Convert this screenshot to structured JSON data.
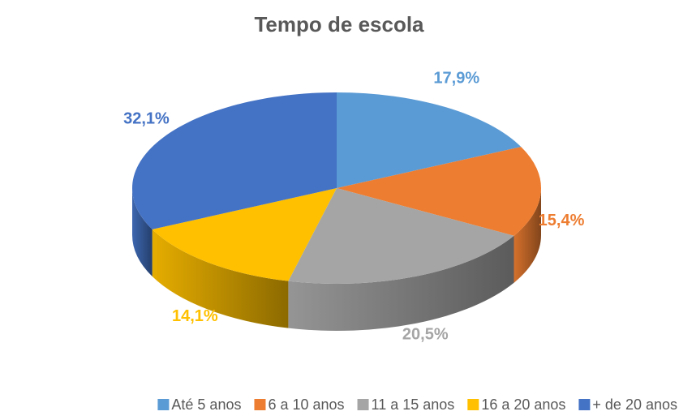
{
  "chart_data": {
    "type": "pie",
    "title": "Tempo de escola",
    "categories": [
      "Até 5 anos",
      "6 a 10 anos",
      "11 a 15 anos",
      "16 a 20 anos",
      "+ de 20 anos"
    ],
    "values": [
      17.9,
      15.4,
      20.5,
      14.1,
      32.1
    ],
    "value_labels": [
      "17,9%",
      "15,4%",
      "20,5%",
      "14,1%",
      "32,1%"
    ],
    "colors": [
      "#5b9bd5",
      "#ed7d31",
      "#a5a5a5",
      "#ffc000",
      "#4472c4"
    ],
    "legend": "bottom"
  }
}
